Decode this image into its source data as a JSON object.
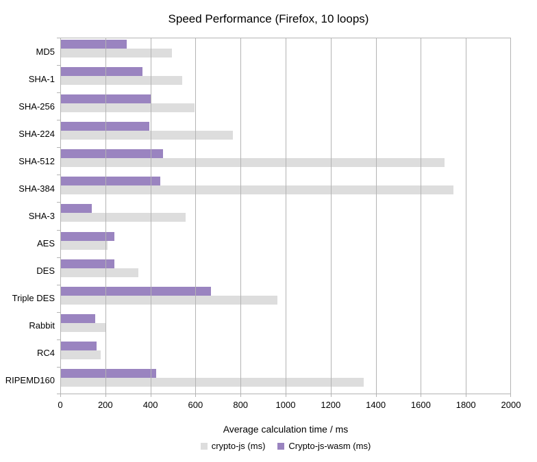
{
  "chart_data": {
    "type": "bar",
    "orientation": "horizontal",
    "title": "Speed Performance (Firefox, 10 loops)",
    "xlabel": "Average calculation time / ms",
    "xlim": [
      0,
      2000
    ],
    "xticks": [
      0,
      200,
      400,
      600,
      800,
      1000,
      1200,
      1400,
      1600,
      1800,
      2000
    ],
    "grid": true,
    "legend_position": "bottom",
    "categories": [
      "MD5",
      "SHA-1",
      "SHA-256",
      "SHA-224",
      "SHA-512",
      "SHA-384",
      "SHA-3",
      "AES",
      "DES",
      "Triple DES",
      "Rabbit",
      "RC4",
      "RIPEMD160"
    ],
    "series": [
      {
        "name": "crypto-js (ms)",
        "color": "#dddddd",
        "values": [
          495,
          540,
          595,
          765,
          1705,
          1745,
          555,
          210,
          345,
          965,
          200,
          180,
          1345
        ]
      },
      {
        "name": "Crypto-js-wasm (ms)",
        "color": "#9a84c0",
        "values": [
          295,
          365,
          400,
          395,
          455,
          445,
          140,
          240,
          240,
          670,
          155,
          160,
          425
        ]
      }
    ],
    "bar_order_top_to_bottom": [
      "Crypto-js-wasm (ms)",
      "crypto-js (ms)"
    ]
  },
  "colors": {
    "background": "#ffffff",
    "gridline": "#b3b3b3",
    "axis_line": "#b3b3b3",
    "text": "#000000"
  }
}
